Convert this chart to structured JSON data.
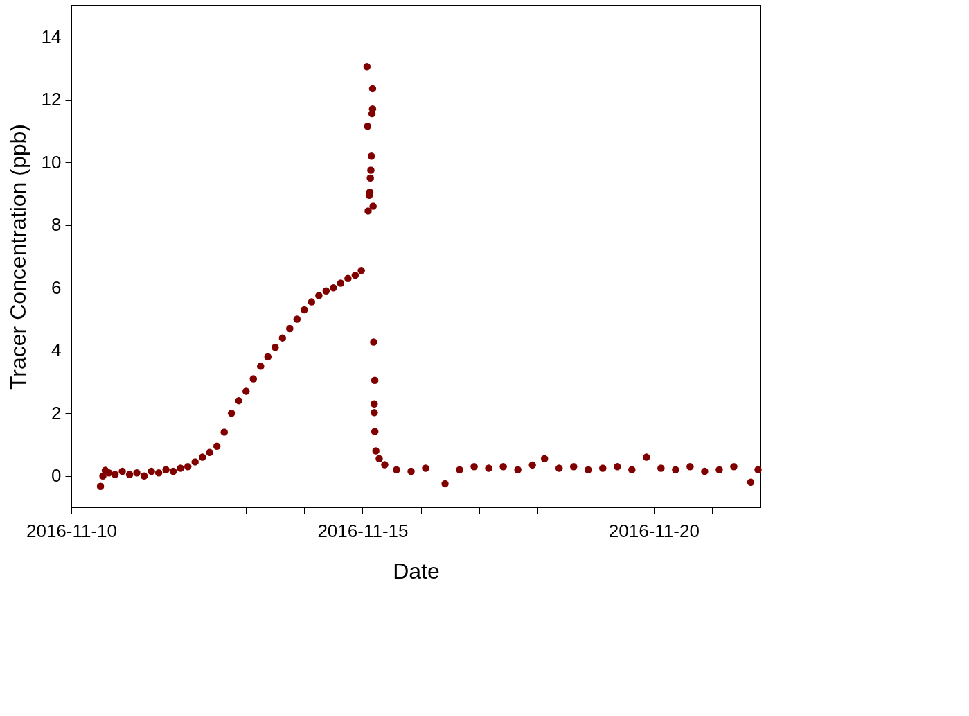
{
  "chart_data": {
    "type": "scatter",
    "xlabel": "Date",
    "ylabel": "Tracer Concentration (ppb)",
    "xlim": [
      "2016-11-10T00:00",
      "2016-11-21T20:00"
    ],
    "xticks": [
      {
        "value": "2016-11-10T00:00",
        "label": "2016-11-10"
      },
      {
        "value": "2016-11-11T00:00",
        "label": null
      },
      {
        "value": "2016-11-12T00:00",
        "label": null
      },
      {
        "value": "2016-11-13T00:00",
        "label": null
      },
      {
        "value": "2016-11-14T00:00",
        "label": null
      },
      {
        "value": "2016-11-15T00:00",
        "label": "2016-11-15"
      },
      {
        "value": "2016-11-16T00:00",
        "label": null
      },
      {
        "value": "2016-11-17T00:00",
        "label": null
      },
      {
        "value": "2016-11-18T00:00",
        "label": null
      },
      {
        "value": "2016-11-19T00:00",
        "label": null
      },
      {
        "value": "2016-11-20T00:00",
        "label": "2016-11-20"
      },
      {
        "value": "2016-11-21T00:00",
        "label": null
      }
    ],
    "ylim": [
      -1,
      15
    ],
    "yticks": [
      0,
      2,
      4,
      6,
      8,
      10,
      12,
      14
    ],
    "grid": false,
    "marker": "circle",
    "series": [
      {
        "color": "#800000",
        "x": [
          "2016-11-10T12:00",
          "2016-11-10T13:00",
          "2016-11-10T14:00",
          "2016-11-10T15:30",
          "2016-11-10T18:00",
          "2016-11-10T21:00",
          "2016-11-11T00:00",
          "2016-11-11T03:00",
          "2016-11-11T06:00",
          "2016-11-11T09:00",
          "2016-11-11T12:00",
          "2016-11-11T15:00",
          "2016-11-11T18:00",
          "2016-11-11T21:00",
          "2016-11-12T00:00",
          "2016-11-12T03:00",
          "2016-11-12T06:00",
          "2016-11-12T09:00",
          "2016-11-12T12:00",
          "2016-11-12T15:00",
          "2016-11-12T18:00",
          "2016-11-12T21:00",
          "2016-11-13T00:00",
          "2016-11-13T03:00",
          "2016-11-13T06:00",
          "2016-11-13T09:00",
          "2016-11-13T12:00",
          "2016-11-13T15:00",
          "2016-11-13T18:00",
          "2016-11-13T21:00",
          "2016-11-14T00:00",
          "2016-11-14T03:00",
          "2016-11-14T06:00",
          "2016-11-14T09:00",
          "2016-11-14T12:00",
          "2016-11-14T15:00",
          "2016-11-14T18:00",
          "2016-11-14T21:00",
          "2016-11-14T23:30",
          "2016-11-15T01:50",
          "2016-11-15T02:04",
          "2016-11-15T02:18",
          "2016-11-15T02:45",
          "2016-11-15T02:59",
          "2016-11-15T03:13",
          "2016-11-15T03:26",
          "2016-11-15T03:40",
          "2016-11-15T03:54",
          "2016-11-15T04:08",
          "2016-11-15T04:09",
          "2016-11-15T04:21",
          "2016-11-15T04:35",
          "2016-11-15T05:03",
          "2016-11-15T04:49",
          "2016-11-15T04:50",
          "2016-11-15T05:04",
          "2016-11-15T05:30",
          "2016-11-15T06:52",
          "2016-11-15T09:09",
          "2016-11-15T14:00",
          "2016-11-15T20:00",
          "2016-11-16T02:00",
          "2016-11-16T10:00",
          "2016-11-16T16:00",
          "2016-11-16T22:00",
          "2016-11-17T04:00",
          "2016-11-17T10:00",
          "2016-11-17T16:00",
          "2016-11-17T22:00",
          "2016-11-18T03:00",
          "2016-11-18T09:00",
          "2016-11-18T15:00",
          "2016-11-18T21:00",
          "2016-11-19T03:00",
          "2016-11-19T09:00",
          "2016-11-19T15:00",
          "2016-11-19T21:00",
          "2016-11-20T03:00",
          "2016-11-20T09:00",
          "2016-11-20T15:00",
          "2016-11-20T21:00",
          "2016-11-21T03:00",
          "2016-11-21T09:00",
          "2016-11-21T16:00",
          "2016-11-21T19:00"
        ],
        "values": [
          -0.33,
          0.0,
          0.18,
          0.1,
          0.05,
          0.15,
          0.05,
          0.1,
          0.0,
          0.15,
          0.1,
          0.2,
          0.15,
          0.25,
          0.3,
          0.45,
          0.6,
          0.75,
          0.95,
          1.4,
          2.0,
          2.4,
          2.7,
          3.1,
          3.5,
          3.8,
          4.1,
          4.4,
          4.7,
          5.0,
          5.3,
          5.55,
          5.75,
          5.9,
          6.0,
          6.15,
          6.3,
          6.4,
          6.55,
          13.05,
          11.15,
          8.45,
          8.95,
          9.05,
          9.5,
          9.75,
          10.2,
          11.55,
          11.7,
          12.35,
          8.6,
          4.27,
          3.05,
          2.3,
          2.02,
          1.42,
          0.8,
          0.55,
          0.36,
          0.2,
          0.15,
          0.25,
          -0.25,
          0.2,
          0.3,
          0.25,
          0.3,
          0.2,
          0.35,
          0.55,
          0.25,
          0.3,
          0.2,
          0.25,
          0.3,
          0.2,
          0.6,
          0.25,
          0.2,
          0.3,
          0.15,
          0.2,
          0.3,
          -0.2,
          0.2
        ]
      }
    ]
  }
}
